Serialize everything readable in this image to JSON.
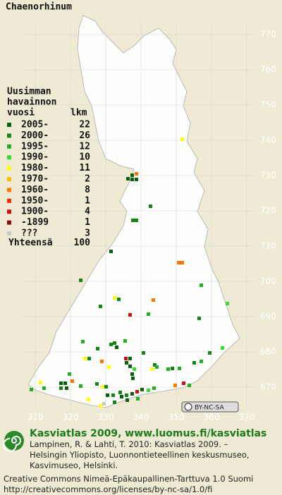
{
  "title": "Chaenorhinum",
  "legend": {
    "heading": [
      "Uusimman",
      "havainnon",
      "vuosi"
    ],
    "count_heading": "lkm",
    "items": [
      {
        "label": "2005-",
        "count": 22,
        "color": "#0b610b"
      },
      {
        "label": "2000-",
        "count": 26,
        "color": "#15851a"
      },
      {
        "label": "1995-",
        "count": 12,
        "color": "#22b022"
      },
      {
        "label": "1990-",
        "count": 10,
        "color": "#33dd33"
      },
      {
        "label": "1980-",
        "count": 11,
        "color": "#ffff00"
      },
      {
        "label": "1970-",
        "count": 2,
        "color": "#ffbb00"
      },
      {
        "label": "1960-",
        "count": 8,
        "color": "#ff7700"
      },
      {
        "label": "1950-",
        "count": 1,
        "color": "#ee3300"
      },
      {
        "label": "1900-",
        "count": 4,
        "color": "#cc1111"
      },
      {
        "label": "-1899",
        "count": 1,
        "color": "#880c0c"
      },
      {
        "label": "???",
        "count": 3,
        "color": "#c8c8c8"
      }
    ],
    "total_label": "Yhteensä",
    "total": 100
  },
  "grid": {
    "north": [
      770,
      760,
      750,
      740,
      730,
      720,
      710,
      700,
      690,
      680,
      670
    ],
    "east": [
      310,
      320,
      330,
      340,
      350,
      360,
      370
    ]
  },
  "license_badge": "BY-NC-SA",
  "footer": {
    "site": "Kasviatlas 2009, www.luomus.fi/kasviatlas",
    "citation": [
      "Lampinen, R. & Lahti, T. 2010: Kasviatlas 2009. –",
      "Helsingin Yliopisto, Luonnontieteellinen keskusmuseo,",
      "Kasvimuseo, Helsinki."
    ],
    "license": [
      "Creative Commons Nimeä-Epäkaupallinen-Tarttuva 1.0 Suomi",
      "http://creativecommons.org/licenses/by-nc-sa/1.0/fi"
    ]
  }
}
